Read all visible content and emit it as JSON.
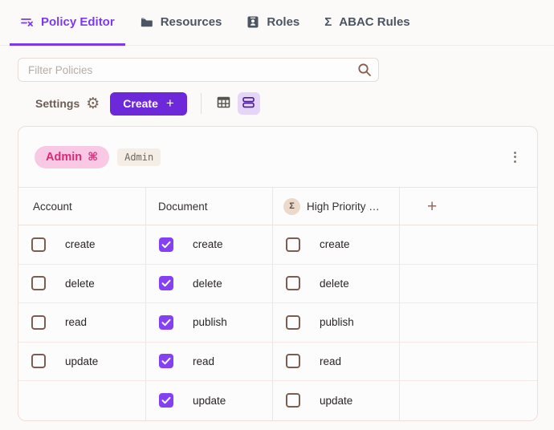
{
  "tabs": [
    {
      "label": "Policy Editor",
      "icon": "policy-editor-icon",
      "active": true
    },
    {
      "label": "Resources",
      "icon": "folder-icon",
      "active": false
    },
    {
      "label": "Roles",
      "icon": "id-badge-icon",
      "active": false
    },
    {
      "label": "ABAC Rules",
      "icon": "sigma-icon",
      "sigma": "Σ",
      "active": false
    }
  ],
  "filter": {
    "placeholder": "Filter Policies"
  },
  "toolbar": {
    "settings_label": "Settings",
    "gear_glyph": "⚙",
    "create_label": "Create",
    "create_plus": "+"
  },
  "policy_card": {
    "role_name": "Admin",
    "role_icon_glyph": "⌘",
    "role_tag": "Admin",
    "add_column_label": "+",
    "columns": [
      {
        "label": "Account"
      },
      {
        "label": "Document"
      },
      {
        "label": "High Priority …",
        "badge": "Σ"
      }
    ],
    "rows": [
      [
        {
          "label": "create",
          "checked": false
        },
        {
          "label": "create",
          "checked": true
        },
        {
          "label": "create",
          "checked": false
        },
        null
      ],
      [
        {
          "label": "delete",
          "checked": false
        },
        {
          "label": "delete",
          "checked": true
        },
        {
          "label": "delete",
          "checked": false
        },
        null
      ],
      [
        {
          "label": "read",
          "checked": false
        },
        {
          "label": "publish",
          "checked": true
        },
        {
          "label": "publish",
          "checked": false
        },
        null
      ],
      [
        {
          "label": "update",
          "checked": false
        },
        {
          "label": "read",
          "checked": true
        },
        {
          "label": "read",
          "checked": false
        },
        null
      ],
      [
        null,
        {
          "label": "update",
          "checked": true
        },
        {
          "label": "update",
          "checked": false
        },
        null
      ]
    ]
  },
  "colors": {
    "accent_purple": "#7c3aed",
    "create_button_purple": "#6d28d9",
    "checkbox_checked_purple": "#8640f4",
    "view_toggle_selected_bg": "#e5d5f9",
    "pill_bg": "#f9c8e5",
    "pill_text": "#d42a78",
    "tag_bg": "#f5eee7",
    "card_border": "#eddfd8",
    "row_border": "#f3e8e2",
    "checkbox_border_brown": "#7b5d52",
    "icon_brown": "#8a5c4c",
    "tab_inactive": "#4b5563"
  }
}
